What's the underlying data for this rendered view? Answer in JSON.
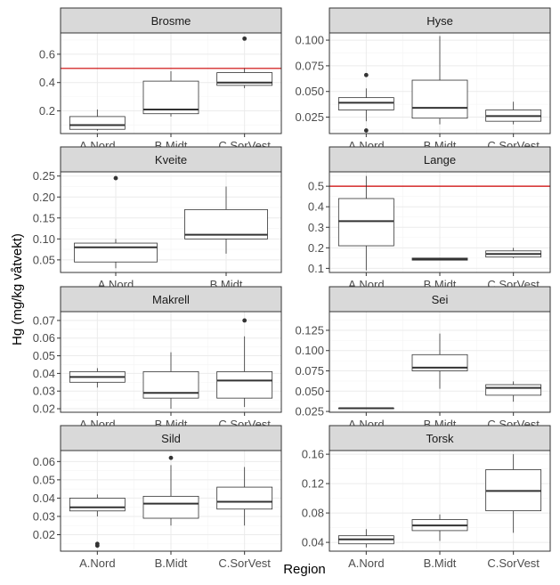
{
  "ylabel": "Hg (mg/kg våtvekt)",
  "xlabel": "Region",
  "colors": {
    "strip": "#d9d9d9",
    "border": "#333333",
    "grid_major": "#ebebeb",
    "grid_minor": "#f5f5f5",
    "box": "#333333",
    "ref_line": "#cc0000",
    "tick_text": "#4d4d4d"
  },
  "chart_data": [
    {
      "type": "boxplot",
      "title": "Brosme",
      "categories": [
        "A.Nord",
        "B.Midt",
        "C.SorVest"
      ],
      "ylim": [
        0.04,
        0.75
      ],
      "yticks": [
        0.2,
        0.4,
        0.6
      ],
      "ytick_labels": [
        "0.2",
        "0.4",
        "0.6"
      ],
      "ref_line": 0.5,
      "boxes": [
        {
          "lower": 0.06,
          "q1": 0.07,
          "median": 0.1,
          "q3": 0.16,
          "upper": 0.21,
          "outliers": []
        },
        {
          "lower": 0.16,
          "q1": 0.18,
          "median": 0.21,
          "q3": 0.41,
          "upper": 0.48,
          "outliers": []
        },
        {
          "lower": 0.36,
          "q1": 0.38,
          "median": 0.4,
          "q3": 0.47,
          "upper": 0.5,
          "outliers": [
            0.71
          ]
        }
      ]
    },
    {
      "type": "boxplot",
      "title": "Hyse",
      "categories": [
        "A.Nord",
        "B.Midt",
        "C.SorVest"
      ],
      "ylim": [
        0.009,
        0.107
      ],
      "yticks": [
        0.025,
        0.05,
        0.075,
        0.1
      ],
      "ytick_labels": [
        "0.025",
        "0.050",
        "0.075",
        "0.100"
      ],
      "ref_line": null,
      "boxes": [
        {
          "lower": 0.021,
          "q1": 0.032,
          "median": 0.039,
          "q3": 0.044,
          "upper": 0.053,
          "outliers": [
            0.066,
            0.012
          ]
        },
        {
          "lower": 0.018,
          "q1": 0.024,
          "median": 0.034,
          "q3": 0.061,
          "upper": 0.104,
          "outliers": []
        },
        {
          "lower": 0.018,
          "q1": 0.021,
          "median": 0.026,
          "q3": 0.032,
          "upper": 0.04,
          "outliers": []
        }
      ]
    },
    {
      "type": "boxplot",
      "title": "Kveite",
      "categories": [
        "A.Nord",
        "B.Midt"
      ],
      "ylim": [
        0.02,
        0.26
      ],
      "yticks": [
        0.05,
        0.1,
        0.15,
        0.2,
        0.25
      ],
      "ytick_labels": [
        "0.05",
        "0.10",
        "0.15",
        "0.20",
        "0.25"
      ],
      "ref_line": null,
      "boxes": [
        {
          "lower": 0.03,
          "q1": 0.045,
          "median": 0.08,
          "q3": 0.09,
          "upper": 0.1,
          "outliers": [
            0.245
          ]
        },
        {
          "lower": 0.065,
          "q1": 0.1,
          "median": 0.11,
          "q3": 0.17,
          "upper": 0.225,
          "outliers": []
        }
      ]
    },
    {
      "type": "boxplot",
      "title": "Lange",
      "categories": [
        "A.Nord",
        "B.Midt",
        "C.SorVest"
      ],
      "ylim": [
        0.08,
        0.57
      ],
      "yticks": [
        0.1,
        0.2,
        0.3,
        0.4,
        0.5
      ],
      "ytick_labels": [
        "0.1",
        "0.2",
        "0.3",
        "0.4",
        "0.5"
      ],
      "ref_line": 0.5,
      "boxes": [
        {
          "lower": 0.09,
          "q1": 0.21,
          "median": 0.33,
          "q3": 0.44,
          "upper": 0.55,
          "outliers": []
        },
        {
          "lower": 0.14,
          "q1": 0.14,
          "median": 0.145,
          "q3": 0.15,
          "upper": 0.15,
          "outliers": []
        },
        {
          "lower": 0.15,
          "q1": 0.155,
          "median": 0.17,
          "q3": 0.185,
          "upper": 0.2,
          "outliers": []
        }
      ]
    },
    {
      "type": "boxplot",
      "title": "Makrell",
      "categories": [
        "A.Nord",
        "B.Midt",
        "C.SorVest"
      ],
      "ylim": [
        0.018,
        0.075
      ],
      "yticks": [
        0.02,
        0.03,
        0.04,
        0.05,
        0.06,
        0.07
      ],
      "ytick_labels": [
        "0.02",
        "0.03",
        "0.04",
        "0.05",
        "0.06",
        "0.07"
      ],
      "ref_line": null,
      "boxes": [
        {
          "lower": 0.032,
          "q1": 0.035,
          "median": 0.038,
          "q3": 0.041,
          "upper": 0.043,
          "outliers": []
        },
        {
          "lower": 0.02,
          "q1": 0.026,
          "median": 0.029,
          "q3": 0.041,
          "upper": 0.052,
          "outliers": []
        },
        {
          "lower": 0.021,
          "q1": 0.026,
          "median": 0.036,
          "q3": 0.041,
          "upper": 0.061,
          "outliers": [
            0.07
          ]
        }
      ]
    },
    {
      "type": "boxplot",
      "title": "Sei",
      "categories": [
        "A.Nord",
        "B.Midt",
        "C.SorVest"
      ],
      "ylim": [
        0.024,
        0.148
      ],
      "yticks": [
        0.025,
        0.05,
        0.075,
        0.1,
        0.125
      ],
      "ytick_labels": [
        "0.025",
        "0.050",
        "0.075",
        "0.100",
        "0.125"
      ],
      "ref_line": null,
      "boxes": [
        {
          "lower": 0.029,
          "q1": 0.029,
          "median": 0.029,
          "q3": 0.029,
          "upper": 0.029,
          "outliers": []
        },
        {
          "lower": 0.053,
          "q1": 0.075,
          "median": 0.079,
          "q3": 0.095,
          "upper": 0.121,
          "outliers": []
        },
        {
          "lower": 0.037,
          "q1": 0.045,
          "median": 0.054,
          "q3": 0.058,
          "upper": 0.062,
          "outliers": []
        }
      ]
    },
    {
      "type": "boxplot",
      "title": "Sild",
      "categories": [
        "A.Nord",
        "B.Midt",
        "C.SorVest"
      ],
      "ylim": [
        0.011,
        0.066
      ],
      "yticks": [
        0.02,
        0.03,
        0.04,
        0.05,
        0.06
      ],
      "ytick_labels": [
        "0.02",
        "0.03",
        "0.04",
        "0.05",
        "0.06"
      ],
      "ref_line": null,
      "boxes": [
        {
          "lower": 0.03,
          "q1": 0.033,
          "median": 0.035,
          "q3": 0.04,
          "upper": 0.042,
          "outliers": [
            0.015,
            0.014
          ]
        },
        {
          "lower": 0.025,
          "q1": 0.029,
          "median": 0.037,
          "q3": 0.041,
          "upper": 0.058,
          "outliers": [
            0.062
          ]
        },
        {
          "lower": 0.025,
          "q1": 0.034,
          "median": 0.038,
          "q3": 0.046,
          "upper": 0.057,
          "outliers": []
        }
      ]
    },
    {
      "type": "boxplot",
      "title": "Torsk",
      "categories": [
        "A.Nord",
        "B.Midt",
        "C.SorVest"
      ],
      "ylim": [
        0.028,
        0.165
      ],
      "yticks": [
        0.04,
        0.08,
        0.12,
        0.16
      ],
      "ytick_labels": [
        "0.04",
        "0.08",
        "0.12",
        "0.16"
      ],
      "ref_line": null,
      "boxes": [
        {
          "lower": 0.033,
          "q1": 0.038,
          "median": 0.044,
          "q3": 0.049,
          "upper": 0.058,
          "outliers": []
        },
        {
          "lower": 0.042,
          "q1": 0.056,
          "median": 0.063,
          "q3": 0.071,
          "upper": 0.078,
          "outliers": []
        },
        {
          "lower": 0.053,
          "q1": 0.083,
          "median": 0.11,
          "q3": 0.139,
          "upper": 0.16,
          "outliers": []
        }
      ]
    }
  ]
}
